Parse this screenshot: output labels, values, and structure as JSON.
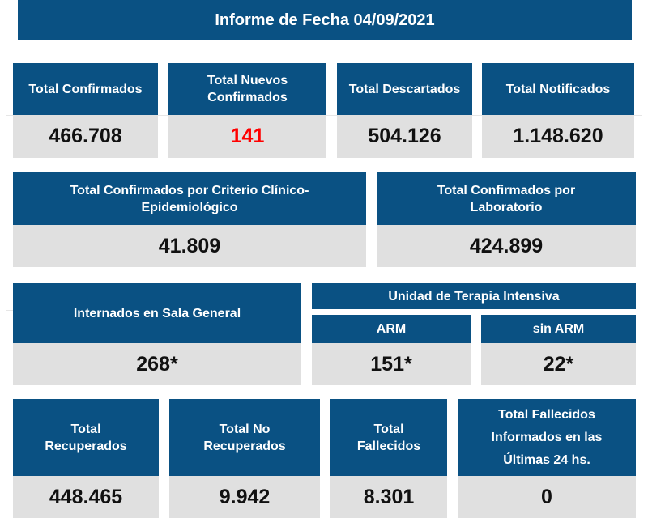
{
  "title": "Informe de Fecha 04/09/2021",
  "colors": {
    "header_bg": "#0a5183",
    "value_bg": "#e0e0e0",
    "highlight": "#ff0000"
  },
  "row1": [
    {
      "label": "Total Confirmados",
      "value": "466.708"
    },
    {
      "label": "Total Nuevos Confirmados",
      "value": "141"
    },
    {
      "label": "Total Descartados",
      "value": "504.126"
    },
    {
      "label": "Total Notificados",
      "value": "1.148.620"
    }
  ],
  "row2": [
    {
      "label": "Total Confirmados por Criterio Clínico-Epidemiológico",
      "value": "41.809"
    },
    {
      "label": "Total Confirmados por Laboratorio",
      "value": "424.899"
    }
  ],
  "row3": {
    "sala": {
      "label": "Internados en Sala General",
      "value": "268*"
    },
    "uti_label": "Unidad de Terapia Intensiva",
    "arm": {
      "label": "ARM",
      "value": "151*"
    },
    "sin_arm": {
      "label": "sin ARM",
      "value": "22*"
    }
  },
  "row4": [
    {
      "label": "Total Recuperados",
      "value": "448.465"
    },
    {
      "label": "Total No Recuperados",
      "value": "9.942"
    },
    {
      "label": "Total Fallecidos",
      "value": "8.301"
    },
    {
      "label": "Total Fallecidos Informados en las Últimas 24 hs.",
      "value": "0"
    }
  ]
}
